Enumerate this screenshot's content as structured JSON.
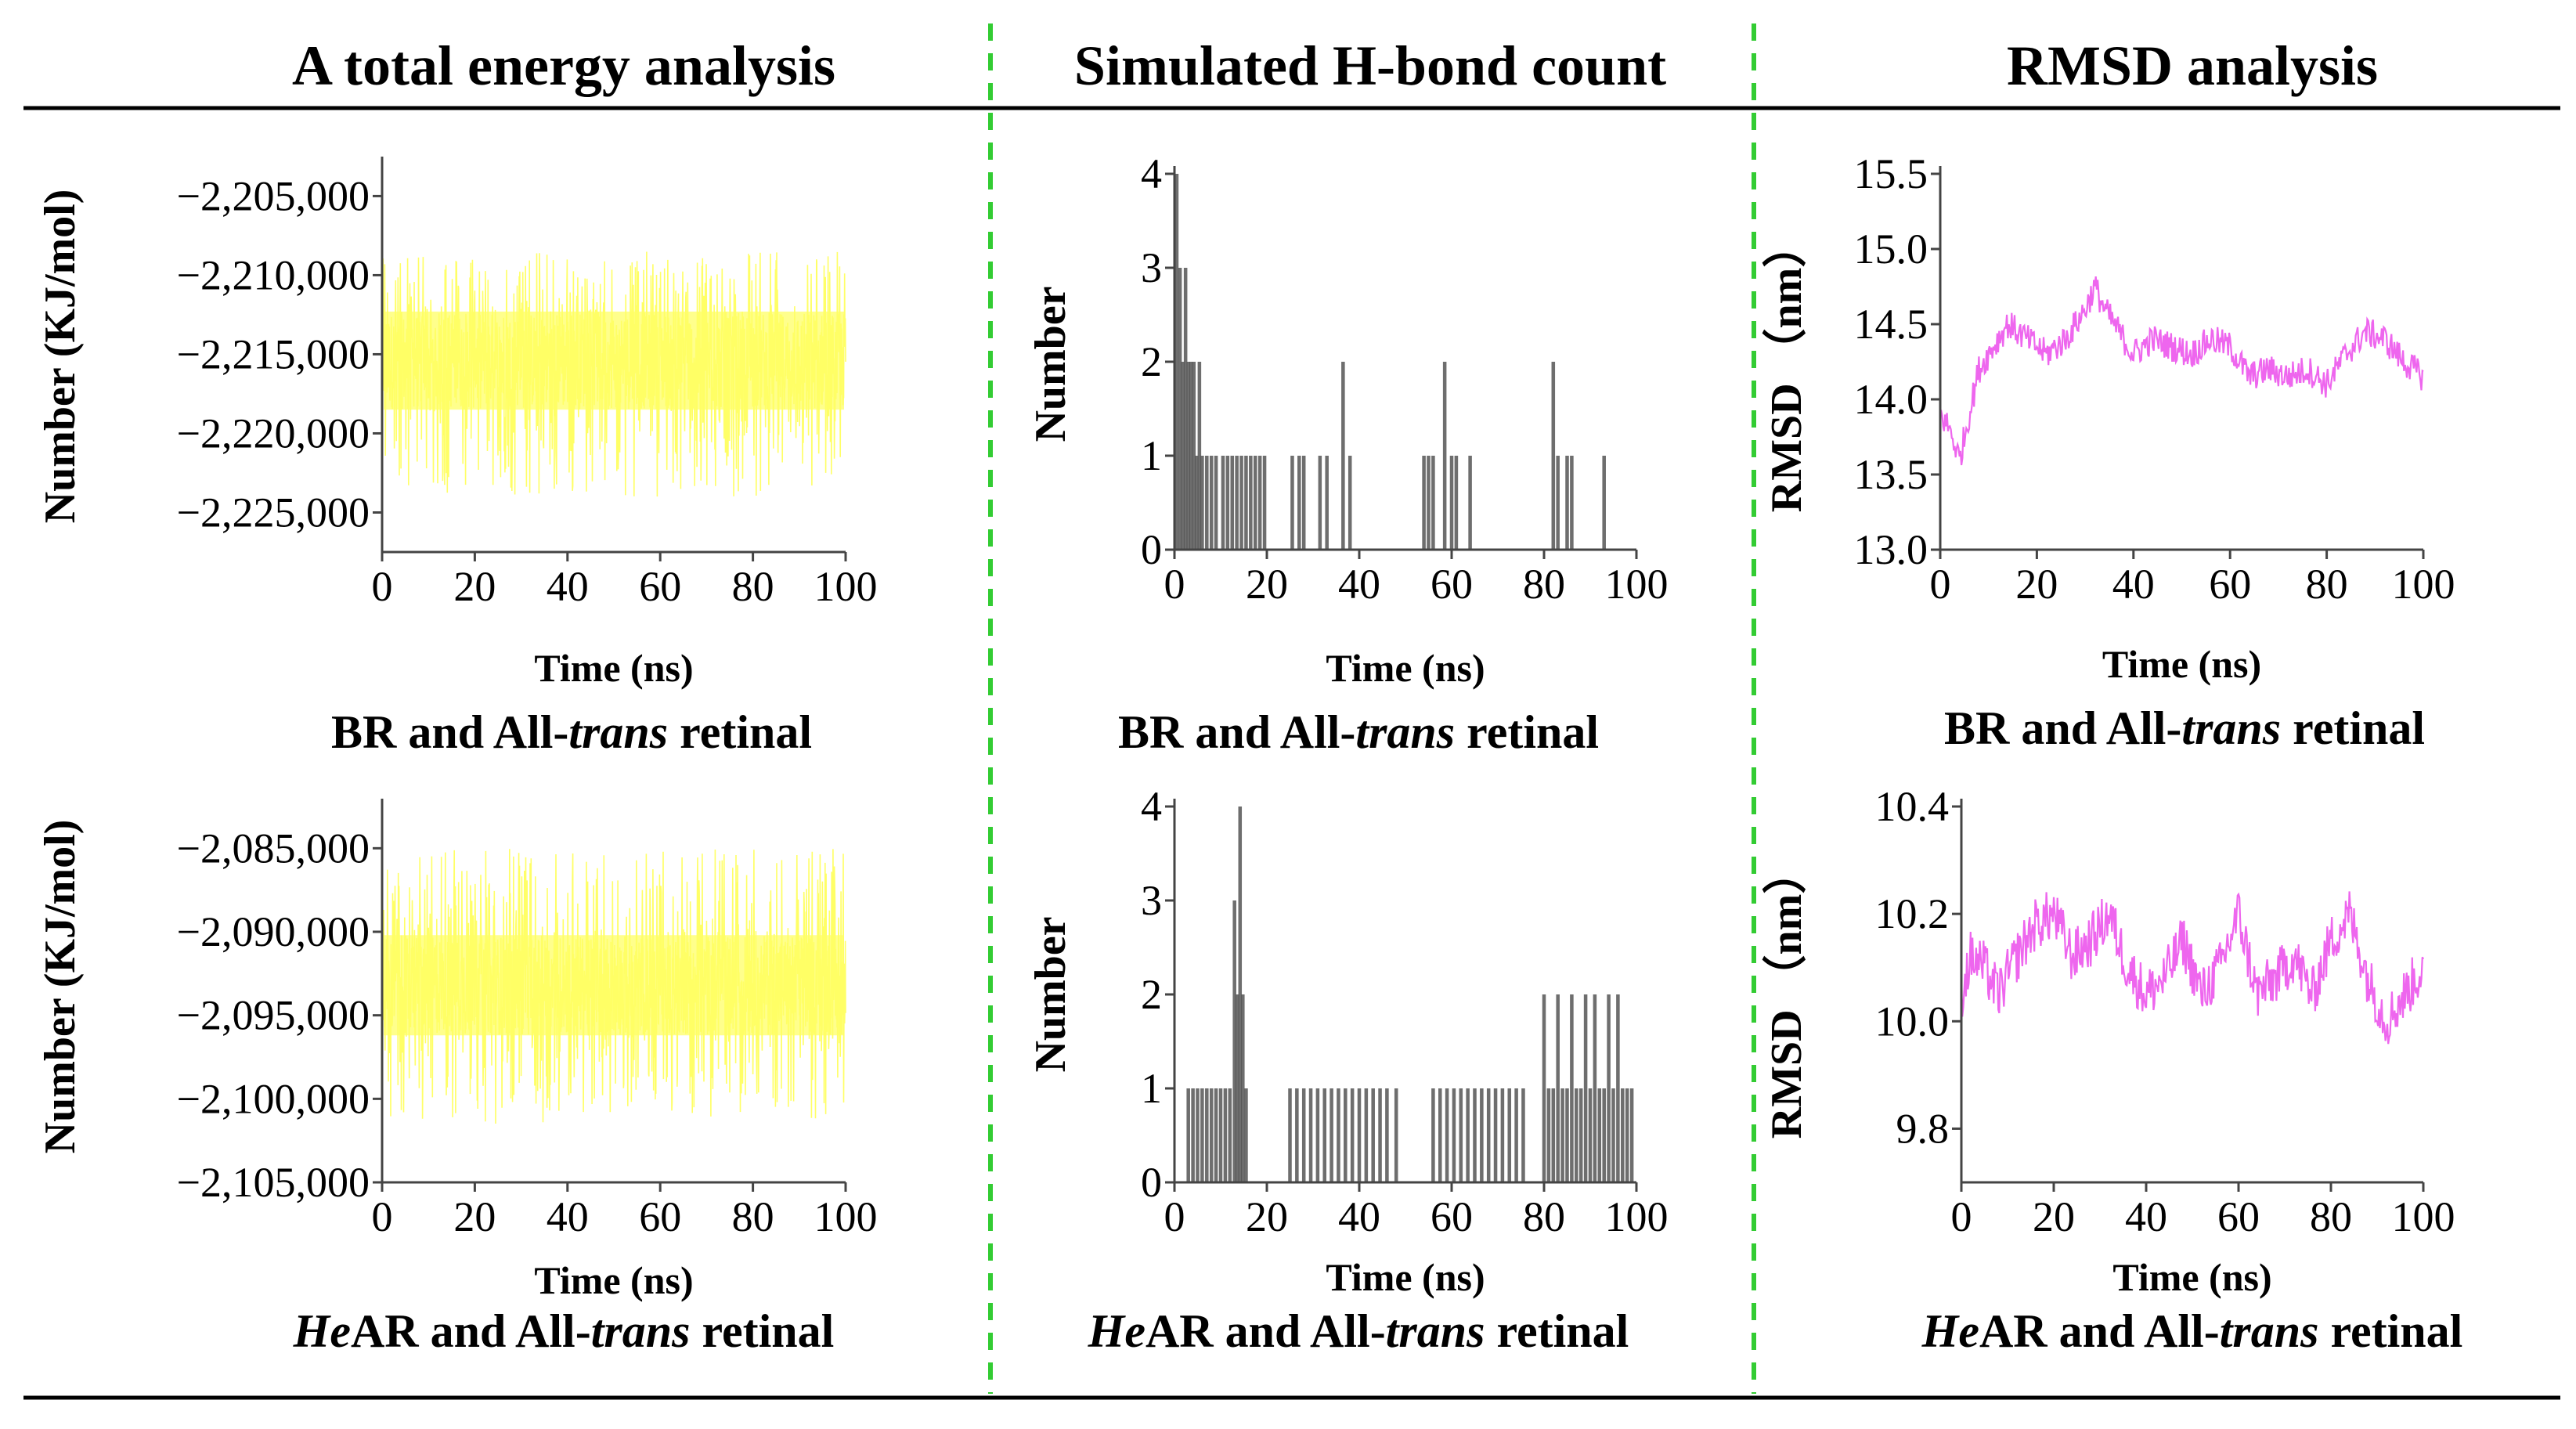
{
  "headers": {
    "energy": "A total energy analysis",
    "hbond": "Simulated H-bond count",
    "rmsd": "RMSD analysis"
  },
  "captions": {
    "top": {
      "pre": "",
      "mid": "BR and All-",
      "it": "trans",
      "post": " retinal"
    },
    "bottom": {
      "pre": "He",
      "mid": "AR and All-",
      "it": "trans",
      "post": " retinal"
    }
  },
  "colors": {
    "energy": "#ffff66",
    "hbond": "#555555",
    "rmsd": "#ee66ee",
    "divider": "#33cc33",
    "rule": "#000000"
  },
  "chart_data": [
    {
      "id": "energy_br",
      "type": "line",
      "title": "A total energy analysis",
      "caption": "BR and All-trans retinal",
      "xlabel": "Time (ns)",
      "ylabel": "Number (KJ/mol)",
      "xlim": [
        0,
        100
      ],
      "ylim": [
        -2227500,
        -2203000
      ],
      "xticks": [
        0,
        20,
        40,
        60,
        80,
        100
      ],
      "yticks": [
        -2225000,
        -2220000,
        -2215000,
        -2210000,
        -2205000
      ],
      "yticklabels": [
        "−2,225,000",
        "−2,220,000",
        "−2,215,000",
        "−2,210,000",
        "−2,205,000"
      ],
      "series": {
        "mean": -2215800,
        "core_range": [
          -2218500,
          -2212300
        ],
        "extreme_range": [
          -2224000,
          -2208500
        ]
      }
    },
    {
      "id": "hbond_br",
      "type": "bar",
      "title": "Simulated H-bond count",
      "caption": "BR and All-trans retinal",
      "xlabel": "Time (ns)",
      "ylabel": "Number",
      "xlim": [
        0,
        100
      ],
      "ylim": [
        0,
        4
      ],
      "xticks": [
        0,
        20,
        40,
        60,
        80,
        100
      ],
      "yticks": [
        0,
        1,
        2,
        3,
        4
      ],
      "bars": [
        {
          "x": 0.5,
          "v": 4
        },
        {
          "x": 1.2,
          "v": 3
        },
        {
          "x": 1.8,
          "v": 2
        },
        {
          "x": 2.4,
          "v": 3
        },
        {
          "x": 3.0,
          "v": 2
        },
        {
          "x": 3.6,
          "v": 2
        },
        {
          "x": 4.2,
          "v": 2
        },
        {
          "x": 4.8,
          "v": 1
        },
        {
          "x": 5.4,
          "v": 2
        },
        {
          "x": 6.0,
          "v": 1
        },
        {
          "x": 7.0,
          "v": 1
        },
        {
          "x": 8.0,
          "v": 1
        },
        {
          "x": 9.0,
          "v": 1
        },
        {
          "x": 10.5,
          "v": 1
        },
        {
          "x": 11.5,
          "v": 1
        },
        {
          "x": 12.5,
          "v": 1
        },
        {
          "x": 13.5,
          "v": 1
        },
        {
          "x": 14.5,
          "v": 1
        },
        {
          "x": 15.5,
          "v": 1
        },
        {
          "x": 16.5,
          "v": 1
        },
        {
          "x": 17.5,
          "v": 1
        },
        {
          "x": 18.5,
          "v": 1
        },
        {
          "x": 19.5,
          "v": 1
        },
        {
          "x": 25.5,
          "v": 1
        },
        {
          "x": 27.0,
          "v": 1
        },
        {
          "x": 28.0,
          "v": 1
        },
        {
          "x": 31.5,
          "v": 1
        },
        {
          "x": 33.0,
          "v": 1
        },
        {
          "x": 36.5,
          "v": 2
        },
        {
          "x": 38.0,
          "v": 1
        },
        {
          "x": 54.0,
          "v": 1
        },
        {
          "x": 55.0,
          "v": 1
        },
        {
          "x": 56.0,
          "v": 1
        },
        {
          "x": 58.5,
          "v": 2
        },
        {
          "x": 60.0,
          "v": 1
        },
        {
          "x": 61.0,
          "v": 1
        },
        {
          "x": 64.0,
          "v": 1
        },
        {
          "x": 82.0,
          "v": 2
        },
        {
          "x": 83.0,
          "v": 1
        },
        {
          "x": 85.0,
          "v": 1
        },
        {
          "x": 86.0,
          "v": 1
        },
        {
          "x": 93.0,
          "v": 1
        }
      ]
    },
    {
      "id": "rmsd_br",
      "type": "line",
      "title": "RMSD analysis",
      "caption": "BR and All-trans retinal",
      "xlabel": "Time (ns)",
      "ylabel": "RMSD （nm）",
      "xlim": [
        0,
        100
      ],
      "ylim": [
        13.0,
        15.5
      ],
      "xticks": [
        0,
        20,
        40,
        60,
        80,
        100
      ],
      "yticks": [
        13.0,
        13.5,
        14.0,
        14.5,
        15.0,
        15.5
      ],
      "yticklabels": [
        "13.0",
        "13.5",
        "14.0",
        "14.5",
        "15.0",
        "15.5"
      ],
      "x": [
        0,
        2,
        4,
        6,
        8,
        10,
        14,
        18,
        22,
        26,
        30,
        32,
        34,
        36,
        40,
        44,
        48,
        52,
        56,
        60,
        64,
        68,
        72,
        76,
        80,
        84,
        88,
        92,
        96,
        100
      ],
      "values": [
        13.9,
        13.8,
        13.6,
        13.9,
        14.2,
        14.3,
        14.5,
        14.4,
        14.3,
        14.4,
        14.6,
        14.75,
        14.6,
        14.5,
        14.3,
        14.4,
        14.35,
        14.3,
        14.4,
        14.35,
        14.15,
        14.2,
        14.15,
        14.2,
        14.1,
        14.3,
        14.45,
        14.4,
        14.25,
        14.15
      ],
      "noise": 0.1
    },
    {
      "id": "energy_hear",
      "type": "line",
      "caption": "HeAR and All-trans retinal",
      "xlabel": "Time (ns)",
      "ylabel": "Number (KJ/mol)",
      "xlim": [
        0,
        100
      ],
      "ylim": [
        -2105000,
        -2082500
      ],
      "xticks": [
        0,
        20,
        40,
        60,
        80,
        100
      ],
      "yticks": [
        -2105000,
        -2100000,
        -2095000,
        -2090000,
        -2085000
      ],
      "yticklabels": [
        "−2,105,000",
        "−2,100,000",
        "−2,095,000",
        "−2,090,000",
        "−2,085,000"
      ],
      "series": {
        "mean": -2093200,
        "core_range": [
          -2096200,
          -2090200
        ],
        "extreme_range": [
          -2101500,
          -2085000
        ]
      }
    },
    {
      "id": "hbond_hear",
      "type": "bar",
      "caption": "HeAR and All-trans retinal",
      "xlabel": "Time (ns)",
      "ylabel": "Number",
      "xlim": [
        0,
        100
      ],
      "ylim": [
        0,
        4
      ],
      "xticks": [
        0,
        20,
        40,
        60,
        80,
        100
      ],
      "yticks": [
        0,
        1,
        2,
        3,
        4
      ],
      "bars": [
        {
          "x": 3.0,
          "v": 1
        },
        {
          "x": 4.0,
          "v": 1
        },
        {
          "x": 5.0,
          "v": 1
        },
        {
          "x": 6.0,
          "v": 1
        },
        {
          "x": 7.0,
          "v": 1
        },
        {
          "x": 8.0,
          "v": 1
        },
        {
          "x": 9.0,
          "v": 1
        },
        {
          "x": 10.0,
          "v": 1
        },
        {
          "x": 11.0,
          "v": 1
        },
        {
          "x": 12.0,
          "v": 1
        },
        {
          "x": 13.0,
          "v": 3
        },
        {
          "x": 13.6,
          "v": 2
        },
        {
          "x": 14.2,
          "v": 4
        },
        {
          "x": 14.8,
          "v": 2
        },
        {
          "x": 15.5,
          "v": 1
        },
        {
          "x": 25.0,
          "v": 1
        },
        {
          "x": 26.5,
          "v": 1
        },
        {
          "x": 28.0,
          "v": 1
        },
        {
          "x": 29.5,
          "v": 1
        },
        {
          "x": 31.0,
          "v": 1
        },
        {
          "x": 32.5,
          "v": 1
        },
        {
          "x": 34.0,
          "v": 1
        },
        {
          "x": 35.5,
          "v": 1
        },
        {
          "x": 37.0,
          "v": 1
        },
        {
          "x": 38.5,
          "v": 1
        },
        {
          "x": 40.0,
          "v": 1
        },
        {
          "x": 41.5,
          "v": 1
        },
        {
          "x": 43.0,
          "v": 1
        },
        {
          "x": 44.5,
          "v": 1
        },
        {
          "x": 46.0,
          "v": 1
        },
        {
          "x": 48.0,
          "v": 1
        },
        {
          "x": 56.0,
          "v": 1
        },
        {
          "x": 57.5,
          "v": 1
        },
        {
          "x": 59.0,
          "v": 1
        },
        {
          "x": 60.5,
          "v": 1
        },
        {
          "x": 62.0,
          "v": 1
        },
        {
          "x": 63.5,
          "v": 1
        },
        {
          "x": 65.0,
          "v": 1
        },
        {
          "x": 66.5,
          "v": 1
        },
        {
          "x": 68.0,
          "v": 1
        },
        {
          "x": 69.5,
          "v": 1
        },
        {
          "x": 71.0,
          "v": 1
        },
        {
          "x": 72.5,
          "v": 1
        },
        {
          "x": 74.0,
          "v": 1
        },
        {
          "x": 75.5,
          "v": 1
        },
        {
          "x": 80.0,
          "v": 2
        },
        {
          "x": 81.0,
          "v": 1
        },
        {
          "x": 82.0,
          "v": 1
        },
        {
          "x": 83.0,
          "v": 2
        },
        {
          "x": 84.0,
          "v": 1
        },
        {
          "x": 85.0,
          "v": 1
        },
        {
          "x": 86.0,
          "v": 2
        },
        {
          "x": 87.0,
          "v": 1
        },
        {
          "x": 88.0,
          "v": 1
        },
        {
          "x": 89.0,
          "v": 2
        },
        {
          "x": 90.0,
          "v": 1
        },
        {
          "x": 91.0,
          "v": 2
        },
        {
          "x": 92.0,
          "v": 1
        },
        {
          "x": 93.0,
          "v": 1
        },
        {
          "x": 94.0,
          "v": 2
        },
        {
          "x": 95.0,
          "v": 1
        },
        {
          "x": 96.0,
          "v": 2
        },
        {
          "x": 97.0,
          "v": 1
        },
        {
          "x": 98.0,
          "v": 1
        },
        {
          "x": 99.0,
          "v": 1
        }
      ]
    },
    {
      "id": "rmsd_hear",
      "type": "line",
      "caption": "HeAR and All-trans retinal",
      "xlabel": "Time (ns)",
      "ylabel": "RMSD （nm）",
      "xlim": [
        0,
        100
      ],
      "ylim": [
        9.7,
        10.4
      ],
      "xticks": [
        0,
        20,
        40,
        60,
        80,
        100
      ],
      "yticks": [
        9.8,
        10.0,
        10.2,
        10.4
      ],
      "yticklabels": [
        "9.8",
        "10.0",
        "10.2",
        "10.4"
      ],
      "x": [
        0,
        2,
        5,
        8,
        12,
        16,
        20,
        24,
        28,
        32,
        36,
        40,
        44,
        48,
        52,
        56,
        60,
        64,
        68,
        72,
        76,
        80,
        84,
        88,
        92,
        96,
        100
      ],
      "values": [
        10.05,
        10.12,
        10.1,
        10.05,
        10.12,
        10.18,
        10.2,
        10.12,
        10.15,
        10.2,
        10.1,
        10.05,
        10.08,
        10.15,
        10.05,
        10.1,
        10.2,
        10.05,
        10.08,
        10.12,
        10.05,
        10.15,
        10.2,
        10.08,
        10.0,
        10.05,
        10.1
      ],
      "noise": 0.05
    }
  ]
}
